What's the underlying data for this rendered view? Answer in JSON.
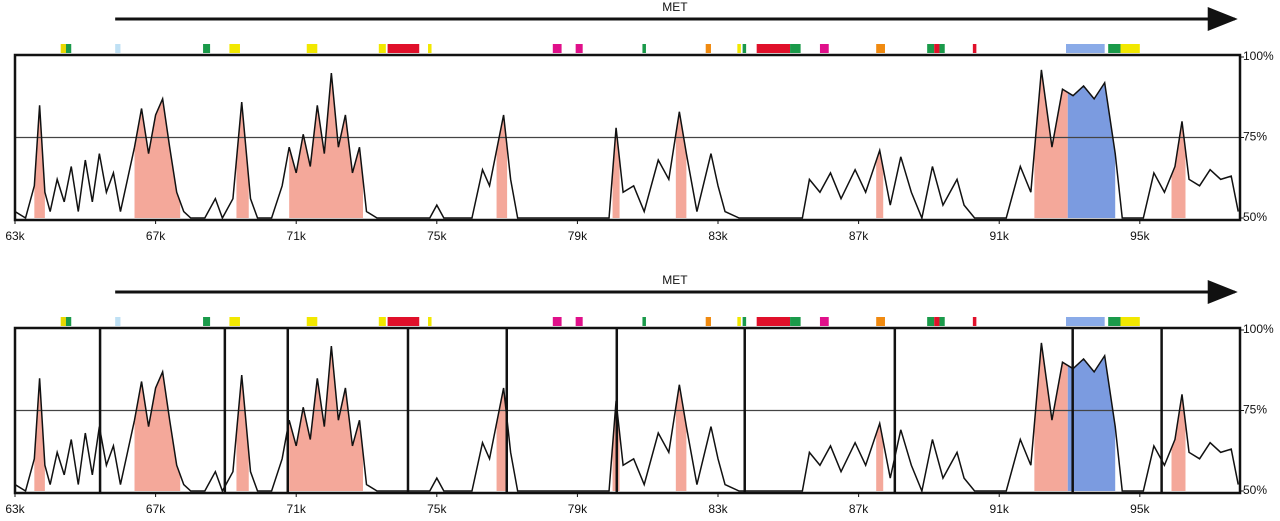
{
  "chart_data": [
    {
      "type": "line",
      "gene": {
        "name": "MET",
        "start": 65850,
        "end": 97700
      },
      "xlim": [
        63000,
        97850
      ],
      "ylim": [
        50,
        100
      ],
      "xticks": [
        {
          "value": 63000,
          "label": "63k"
        },
        {
          "value": 67000,
          "label": "67k"
        },
        {
          "value": 71000,
          "label": "71k"
        },
        {
          "value": 75000,
          "label": "75k"
        },
        {
          "value": 79000,
          "label": "79k"
        },
        {
          "value": 83000,
          "label": "83k"
        },
        {
          "value": 87000,
          "label": "87k"
        },
        {
          "value": 91000,
          "label": "91k"
        },
        {
          "value": 95000,
          "label": "95k"
        }
      ],
      "yticks": [
        {
          "value": 50,
          "label": "50%"
        },
        {
          "value": 75,
          "label": "75%"
        },
        {
          "value": 100,
          "label": "100%"
        }
      ],
      "grid_values": [
        75
      ],
      "color": "#111111",
      "x": [
        63000,
        63300,
        63550,
        63700,
        63850,
        64000,
        64200,
        64400,
        64600,
        64800,
        65000,
        65200,
        65400,
        65600,
        65800,
        66000,
        66200,
        66400,
        66600,
        66800,
        67000,
        67200,
        67400,
        67600,
        67800,
        68000,
        68400,
        68700,
        68900,
        69200,
        69450,
        69700,
        69900,
        70300,
        70600,
        70800,
        71000,
        71200,
        71400,
        71600,
        71800,
        72000,
        72200,
        72400,
        72600,
        72800,
        73000,
        73300,
        74000,
        74800,
        75000,
        75200,
        76000,
        76300,
        76500,
        76900,
        77100,
        77300,
        78000,
        79000,
        79900,
        80100,
        80300,
        80600,
        80900,
        81300,
        81600,
        81900,
        82100,
        82400,
        82800,
        83000,
        83200,
        83600,
        84500,
        85400,
        85600,
        85900,
        86200,
        86500,
        86900,
        87200,
        87600,
        87900,
        88200,
        88500,
        88800,
        89100,
        89400,
        89800,
        90000,
        90300,
        91200,
        91600,
        91900,
        92200,
        92500,
        92800,
        93100,
        93400,
        93700,
        94000,
        94300,
        94500,
        95100,
        95400,
        95700,
        96000,
        96200,
        96400,
        96700,
        97000,
        97300,
        97600,
        97800
      ],
      "values": [
        52,
        50,
        60,
        85,
        58,
        52,
        62,
        55,
        66,
        52,
        68,
        55,
        70,
        58,
        64,
        52,
        62,
        72,
        84,
        70,
        82,
        87,
        72,
        58,
        52,
        50,
        50,
        56,
        50,
        56,
        86,
        56,
        50,
        50,
        60,
        72,
        64,
        76,
        66,
        85,
        70,
        95,
        72,
        82,
        64,
        72,
        52,
        50,
        50,
        50,
        54,
        50,
        50,
        65,
        60,
        82,
        62,
        50,
        50,
        50,
        50,
        78,
        58,
        60,
        52,
        68,
        62,
        83,
        70,
        52,
        70,
        60,
        52,
        50,
        50,
        50,
        62,
        58,
        64,
        56,
        65,
        58,
        71,
        54,
        69,
        58,
        50,
        66,
        54,
        62,
        54,
        50,
        50,
        66,
        58,
        96,
        72,
        90,
        88,
        91,
        87,
        92,
        70,
        50,
        50,
        64,
        58,
        66,
        80,
        62,
        60,
        65,
        62,
        63,
        52
      ],
      "regions": [
        {
          "start": 63550,
          "end": 63850,
          "color": "#f4a89a"
        },
        {
          "start": 66400,
          "end": 67700,
          "color": "#f4a89a"
        },
        {
          "start": 69300,
          "end": 69650,
          "color": "#f4a89a"
        },
        {
          "start": 70800,
          "end": 72900,
          "color": "#f4a89a"
        },
        {
          "start": 76700,
          "end": 77000,
          "color": "#f4a89a"
        },
        {
          "start": 80000,
          "end": 80200,
          "color": "#f4a89a"
        },
        {
          "start": 81800,
          "end": 82100,
          "color": "#f4a89a"
        },
        {
          "start": 87500,
          "end": 87700,
          "color": "#f4a89a"
        },
        {
          "start": 92000,
          "end": 92950,
          "color": "#f4a89a"
        },
        {
          "start": 92950,
          "end": 94300,
          "color": "#7b9be0"
        },
        {
          "start": 95900,
          "end": 96300,
          "color": "#f4a89a"
        }
      ],
      "features": [
        {
          "start": 64300,
          "end": 64450,
          "color": "#e8d800"
        },
        {
          "start": 64450,
          "end": 64600,
          "color": "#1a9a4a"
        },
        {
          "start": 65850,
          "end": 66000,
          "color": "#bfe0f4"
        },
        {
          "start": 68350,
          "end": 68550,
          "color": "#1a9a4a"
        },
        {
          "start": 69100,
          "end": 69400,
          "color": "#f2e800"
        },
        {
          "start": 71300,
          "end": 71600,
          "color": "#f2e800"
        },
        {
          "start": 73350,
          "end": 73550,
          "color": "#f2e800"
        },
        {
          "start": 73600,
          "end": 74500,
          "color": "#e0102a"
        },
        {
          "start": 74750,
          "end": 74850,
          "color": "#f2e800"
        },
        {
          "start": 78300,
          "end": 78550,
          "color": "#e0108a"
        },
        {
          "start": 78950,
          "end": 79150,
          "color": "#e0108a"
        },
        {
          "start": 80850,
          "end": 80950,
          "color": "#1a9a4a"
        },
        {
          "start": 82650,
          "end": 82800,
          "color": "#f08a10"
        },
        {
          "start": 83550,
          "end": 83650,
          "color": "#f2e800"
        },
        {
          "start": 83700,
          "end": 83800,
          "color": "#1a9a4a"
        },
        {
          "start": 84100,
          "end": 85050,
          "color": "#e0102a"
        },
        {
          "start": 85050,
          "end": 85350,
          "color": "#1a9a4a"
        },
        {
          "start": 85900,
          "end": 86150,
          "color": "#e0108a"
        },
        {
          "start": 87500,
          "end": 87750,
          "color": "#f08a10"
        },
        {
          "start": 88950,
          "end": 89150,
          "color": "#1a9a4a"
        },
        {
          "start": 89150,
          "end": 89300,
          "color": "#e0102a"
        },
        {
          "start": 89300,
          "end": 89450,
          "color": "#1a9a4a"
        },
        {
          "start": 90250,
          "end": 90350,
          "color": "#e0102a"
        },
        {
          "start": 92900,
          "end": 94000,
          "color": "#8aabe8"
        },
        {
          "start": 94100,
          "end": 94450,
          "color": "#1a9a4a"
        },
        {
          "start": 94450,
          "end": 95000,
          "color": "#f2e800"
        }
      ]
    },
    {
      "type": "line",
      "gene": {
        "name": "MET",
        "start": 65850,
        "end": 97700
      },
      "xlim": [
        63000,
        97850
      ],
      "ylim": [
        50,
        100
      ],
      "xticks": [
        {
          "value": 63000,
          "label": "63k"
        },
        {
          "value": 67000,
          "label": "67k"
        },
        {
          "value": 71000,
          "label": "71k"
        },
        {
          "value": 75000,
          "label": "75k"
        },
        {
          "value": 79000,
          "label": "79k"
        },
        {
          "value": 83000,
          "label": "83k"
        },
        {
          "value": 87000,
          "label": "87k"
        },
        {
          "value": 91000,
          "label": "91k"
        },
        {
          "value": 95000,
          "label": "95k"
        }
      ],
      "yticks": [
        {
          "value": 50,
          "label": "50%"
        },
        {
          "value": 75,
          "label": "75%"
        },
        {
          "value": 100,
          "label": "100%"
        }
      ],
      "grid_values": [
        75
      ],
      "color": "#111111",
      "markers": [
        65420,
        68970,
        70760,
        74180,
        76990,
        80120,
        83760,
        88030,
        93090,
        95620
      ],
      "x": [
        63000,
        63300,
        63550,
        63700,
        63850,
        64000,
        64200,
        64400,
        64600,
        64800,
        65000,
        65200,
        65400,
        65600,
        65800,
        66000,
        66200,
        66400,
        66600,
        66800,
        67000,
        67200,
        67400,
        67600,
        67800,
        68000,
        68400,
        68700,
        68900,
        69200,
        69450,
        69700,
        69900,
        70300,
        70600,
        70800,
        71000,
        71200,
        71400,
        71600,
        71800,
        72000,
        72200,
        72400,
        72600,
        72800,
        73000,
        73300,
        74000,
        74800,
        75000,
        75200,
        76000,
        76300,
        76500,
        76900,
        77100,
        77300,
        78000,
        79000,
        79900,
        80100,
        80300,
        80600,
        80900,
        81300,
        81600,
        81900,
        82100,
        82400,
        82800,
        83000,
        83200,
        83600,
        84500,
        85400,
        85600,
        85900,
        86200,
        86500,
        86900,
        87200,
        87600,
        87900,
        88200,
        88500,
        88800,
        89100,
        89400,
        89800,
        90000,
        90300,
        91200,
        91600,
        91900,
        92200,
        92500,
        92800,
        93100,
        93400,
        93700,
        94000,
        94300,
        94500,
        95100,
        95400,
        95700,
        96000,
        96200,
        96400,
        96700,
        97000,
        97300,
        97600,
        97800
      ],
      "values": [
        52,
        50,
        60,
        85,
        58,
        52,
        62,
        55,
        66,
        52,
        68,
        55,
        70,
        58,
        64,
        52,
        62,
        72,
        84,
        70,
        82,
        87,
        72,
        58,
        52,
        50,
        50,
        56,
        50,
        56,
        86,
        56,
        50,
        50,
        60,
        72,
        64,
        76,
        66,
        85,
        70,
        95,
        72,
        82,
        64,
        72,
        52,
        50,
        50,
        50,
        54,
        50,
        50,
        65,
        60,
        82,
        62,
        50,
        50,
        50,
        50,
        78,
        58,
        60,
        52,
        68,
        62,
        83,
        70,
        52,
        70,
        60,
        52,
        50,
        50,
        50,
        62,
        58,
        64,
        56,
        65,
        58,
        71,
        54,
        69,
        58,
        50,
        66,
        54,
        62,
        54,
        50,
        50,
        66,
        58,
        96,
        72,
        90,
        88,
        91,
        87,
        92,
        70,
        50,
        50,
        64,
        58,
        66,
        80,
        62,
        60,
        65,
        62,
        63,
        52
      ],
      "regions": [
        {
          "start": 63550,
          "end": 63850,
          "color": "#f4a89a"
        },
        {
          "start": 66400,
          "end": 67700,
          "color": "#f4a89a"
        },
        {
          "start": 69300,
          "end": 69650,
          "color": "#f4a89a"
        },
        {
          "start": 70800,
          "end": 72900,
          "color": "#f4a89a"
        },
        {
          "start": 76700,
          "end": 77000,
          "color": "#f4a89a"
        },
        {
          "start": 80000,
          "end": 80200,
          "color": "#f4a89a"
        },
        {
          "start": 81800,
          "end": 82100,
          "color": "#f4a89a"
        },
        {
          "start": 87500,
          "end": 87700,
          "color": "#f4a89a"
        },
        {
          "start": 92000,
          "end": 92950,
          "color": "#f4a89a"
        },
        {
          "start": 92950,
          "end": 94300,
          "color": "#7b9be0"
        },
        {
          "start": 95900,
          "end": 96300,
          "color": "#f4a89a"
        }
      ],
      "features": [
        {
          "start": 64300,
          "end": 64450,
          "color": "#e8d800"
        },
        {
          "start": 64450,
          "end": 64600,
          "color": "#1a9a4a"
        },
        {
          "start": 65850,
          "end": 66000,
          "color": "#bfe0f4"
        },
        {
          "start": 68350,
          "end": 68550,
          "color": "#1a9a4a"
        },
        {
          "start": 69100,
          "end": 69400,
          "color": "#f2e800"
        },
        {
          "start": 71300,
          "end": 71600,
          "color": "#f2e800"
        },
        {
          "start": 73350,
          "end": 73550,
          "color": "#f2e800"
        },
        {
          "start": 73600,
          "end": 74500,
          "color": "#e0102a"
        },
        {
          "start": 74750,
          "end": 74850,
          "color": "#f2e800"
        },
        {
          "start": 78300,
          "end": 78550,
          "color": "#e0108a"
        },
        {
          "start": 78950,
          "end": 79150,
          "color": "#e0108a"
        },
        {
          "start": 80850,
          "end": 80950,
          "color": "#1a9a4a"
        },
        {
          "start": 82650,
          "end": 82800,
          "color": "#f08a10"
        },
        {
          "start": 83550,
          "end": 83650,
          "color": "#f2e800"
        },
        {
          "start": 83700,
          "end": 83800,
          "color": "#1a9a4a"
        },
        {
          "start": 84100,
          "end": 85050,
          "color": "#e0102a"
        },
        {
          "start": 85050,
          "end": 85350,
          "color": "#1a9a4a"
        },
        {
          "start": 85900,
          "end": 86150,
          "color": "#e0108a"
        },
        {
          "start": 87500,
          "end": 87750,
          "color": "#f08a10"
        },
        {
          "start": 88950,
          "end": 89150,
          "color": "#1a9a4a"
        },
        {
          "start": 89150,
          "end": 89300,
          "color": "#e0102a"
        },
        {
          "start": 89300,
          "end": 89450,
          "color": "#1a9a4a"
        },
        {
          "start": 90250,
          "end": 90350,
          "color": "#e0102a"
        },
        {
          "start": 92900,
          "end": 94000,
          "color": "#8aabe8"
        },
        {
          "start": 94100,
          "end": 94450,
          "color": "#1a9a4a"
        },
        {
          "start": 94450,
          "end": 95000,
          "color": "#f2e800"
        }
      ]
    }
  ]
}
